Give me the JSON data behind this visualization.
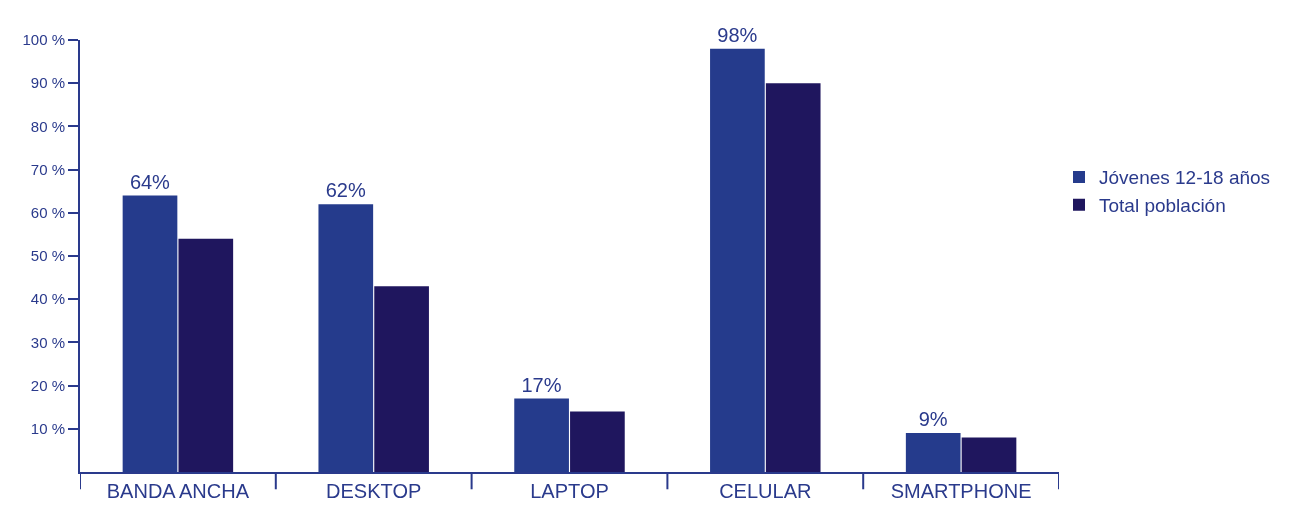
{
  "chart_data": {
    "type": "bar",
    "categories": [
      "BANDA ANCHA",
      "DESKTOP",
      "LAPTOP",
      "CELULAR",
      "SMARTPHONE"
    ],
    "series": [
      {
        "name": "Jóvenes 12-18 años",
        "color": "#253b8c",
        "values": [
          64,
          62,
          17,
          98,
          9
        ],
        "value_labels": [
          "64%",
          "62%",
          "17%",
          "98%",
          "9%"
        ]
      },
      {
        "name": "Total población",
        "color": "#1f165e",
        "values": [
          54,
          43,
          14,
          90,
          8
        ]
      }
    ],
    "ylim": [
      0,
      100
    ],
    "yticks": [
      {
        "value": 10,
        "label": "10 %"
      },
      {
        "value": 20,
        "label": "20 %"
      },
      {
        "value": 30,
        "label": "30 %"
      },
      {
        "value": 40,
        "label": "40 %"
      },
      {
        "value": 50,
        "label": "50 %"
      },
      {
        "value": 60,
        "label": "60 %"
      },
      {
        "value": 70,
        "label": "70 %"
      },
      {
        "value": 80,
        "label": "80 %"
      },
      {
        "value": 90,
        "label": "90 %"
      },
      {
        "value": 100,
        "label": "100 %"
      }
    ],
    "grid": false,
    "legend": "right"
  }
}
